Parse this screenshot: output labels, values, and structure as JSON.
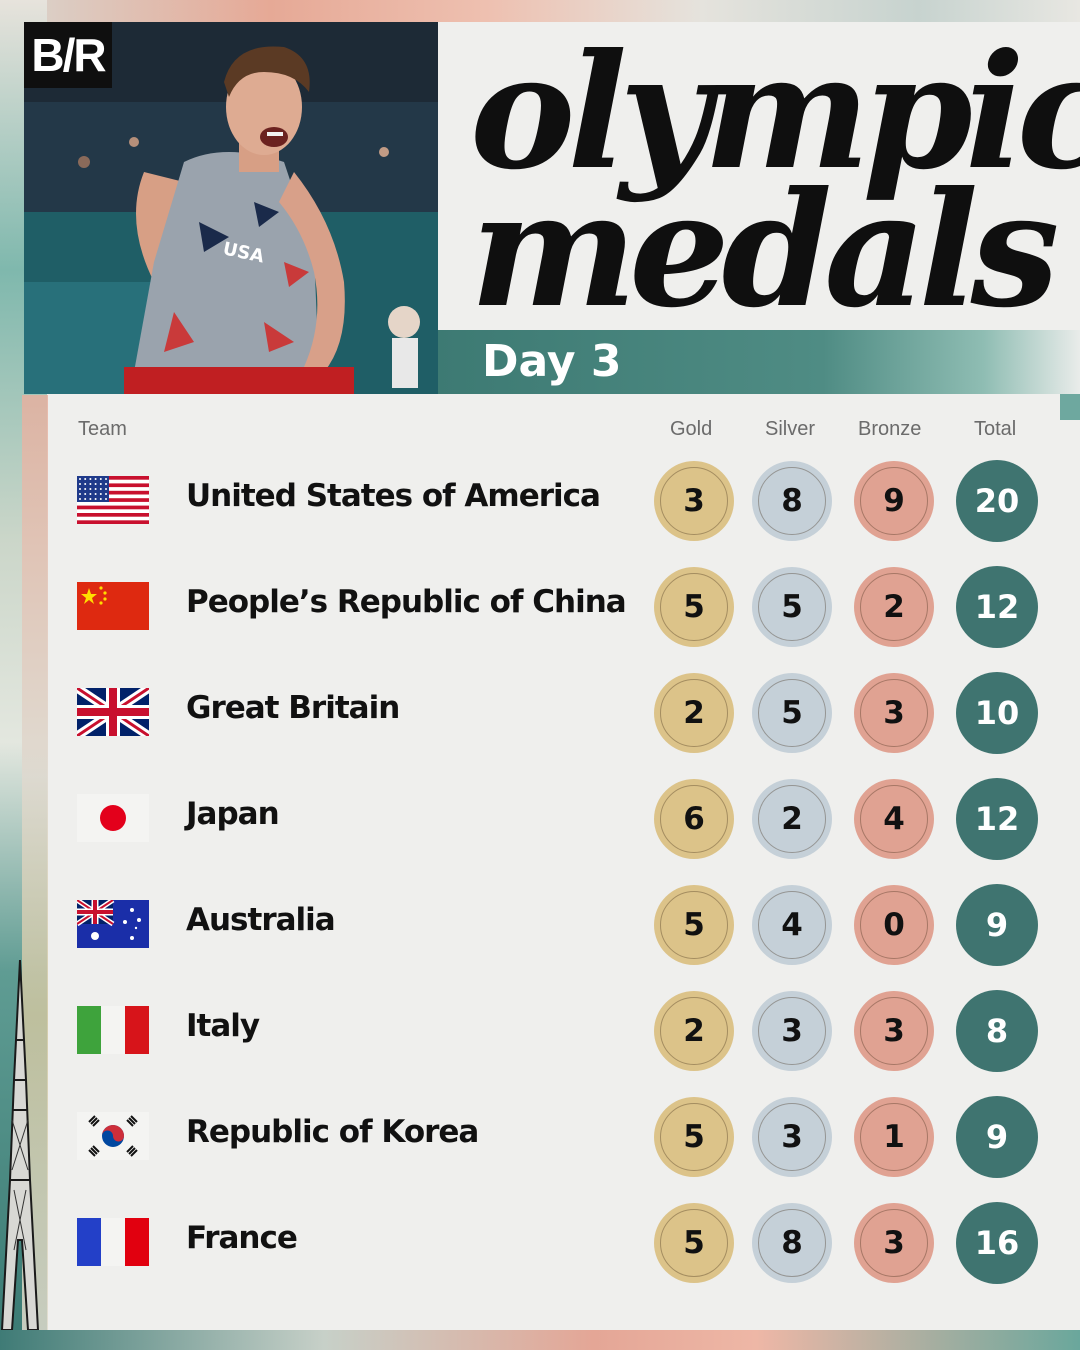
{
  "brand": {
    "logo_text": "B/R"
  },
  "headline": {
    "line1": "olympic",
    "line2": "medals"
  },
  "day_label": "Day 3",
  "photo": {
    "jersey_text": "USA"
  },
  "columns": {
    "team": "Team",
    "gold": "Gold",
    "silver": "Silver",
    "bronze": "Bronze",
    "total": "Total"
  },
  "colors": {
    "gold": "#dcc389",
    "silver": "#c5d0d8",
    "bronze": "#e0a292",
    "total": "#3f7470",
    "accent_teal": "#3d7a73"
  },
  "rows": [
    {
      "team": "United States of America",
      "flag": "flag-usa-icon",
      "gold": "3",
      "silver": "8",
      "bronze": "9",
      "total": "20"
    },
    {
      "team": "People’s Republic of China",
      "flag": "flag-china-icon",
      "gold": "5",
      "silver": "5",
      "bronze": "2",
      "total": "12"
    },
    {
      "team": "Great Britain",
      "flag": "flag-great-britain-icon",
      "gold": "2",
      "silver": "5",
      "bronze": "3",
      "total": "10"
    },
    {
      "team": "Japan",
      "flag": "flag-japan-icon",
      "gold": "6",
      "silver": "2",
      "bronze": "4",
      "total": "12"
    },
    {
      "team": "Australia",
      "flag": "flag-australia-icon",
      "gold": "5",
      "silver": "4",
      "bronze": "0",
      "total": "9"
    },
    {
      "team": "Italy",
      "flag": "flag-italy-icon",
      "gold": "2",
      "silver": "3",
      "bronze": "3",
      "total": "8"
    },
    {
      "team": "Republic of Korea",
      "flag": "flag-korea-icon",
      "gold": "5",
      "silver": "3",
      "bronze": "1",
      "total": "9"
    },
    {
      "team": "France",
      "flag": "flag-france-icon",
      "gold": "5",
      "silver": "8",
      "bronze": "3",
      "total": "16"
    }
  ]
}
